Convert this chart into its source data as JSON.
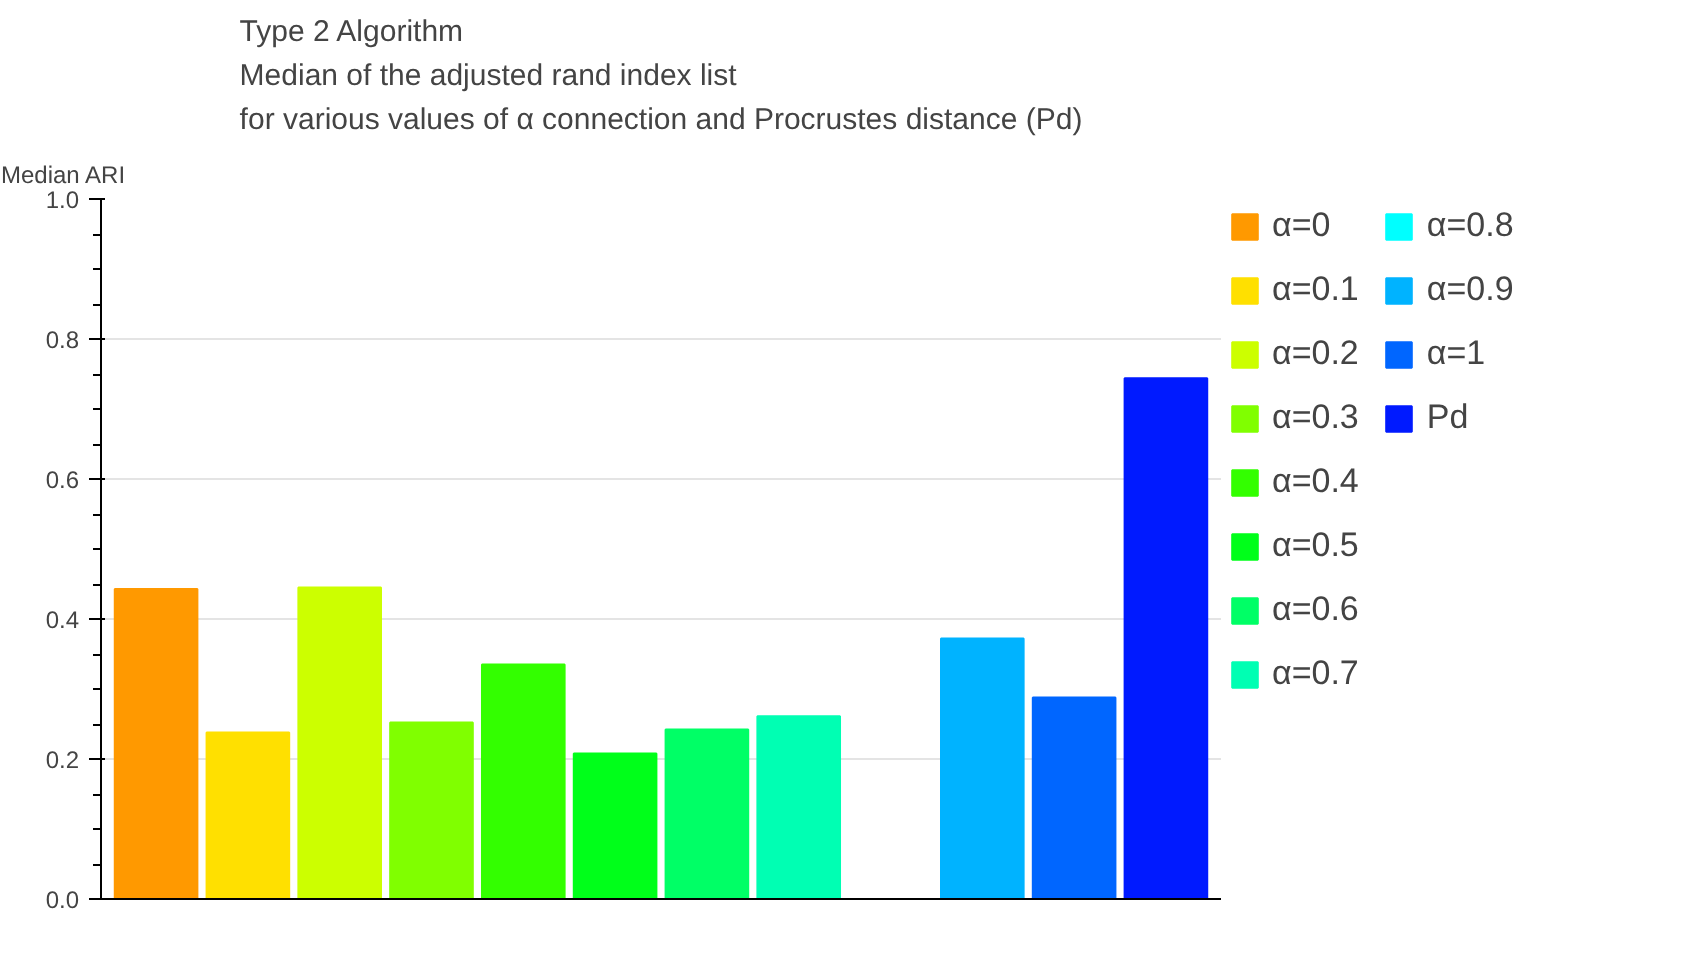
{
  "chart_data": {
    "type": "bar",
    "title": "Type 2 Algorithm\nMedian of the adjusted rand index list\nfor various values of α connection and Procrustes distance (Pd)",
    "ylabel": "Median ARI",
    "categories": [
      null,
      null,
      null,
      null,
      null,
      null,
      null,
      null,
      null,
      null,
      null,
      null
    ],
    "series": [
      {
        "name": "α=0",
        "color": "#ff9900",
        "values": [
          0.443,
          null,
          null,
          null,
          null,
          null,
          null,
          null,
          null,
          null,
          null,
          null
        ]
      },
      {
        "name": "α=0.1",
        "color": "#ffe000",
        "values": [
          null,
          0.238,
          null,
          null,
          null,
          null,
          null,
          null,
          null,
          null,
          null,
          null
        ]
      },
      {
        "name": "α=0.2",
        "color": "#ccff00",
        "values": [
          null,
          null,
          0.445,
          null,
          null,
          null,
          null,
          null,
          null,
          null,
          null,
          null
        ]
      },
      {
        "name": "α=0.3",
        "color": "#80ff00",
        "values": [
          null,
          null,
          null,
          0.252,
          null,
          null,
          null,
          null,
          null,
          null,
          null,
          null
        ]
      },
      {
        "name": "α=0.4",
        "color": "#33ff00",
        "values": [
          null,
          null,
          null,
          null,
          0.335,
          null,
          null,
          null,
          null,
          null,
          null,
          null
        ]
      },
      {
        "name": "α=0.5",
        "color": "#00ff1a",
        "values": [
          null,
          null,
          null,
          null,
          null,
          0.208,
          null,
          null,
          null,
          null,
          null,
          null
        ]
      },
      {
        "name": "α=0.6",
        "color": "#00ff66",
        "values": [
          null,
          null,
          null,
          null,
          null,
          null,
          0.242,
          null,
          null,
          null,
          null,
          null
        ]
      },
      {
        "name": "α=0.7",
        "color": "#00ffb3",
        "values": [
          null,
          null,
          null,
          null,
          null,
          null,
          null,
          0.261,
          null,
          null,
          null,
          null
        ]
      },
      {
        "name": "α=0.8",
        "color": "#00ffff",
        "values": [
          null,
          null,
          null,
          null,
          null,
          null,
          null,
          null,
          0,
          null,
          null,
          null
        ]
      },
      {
        "name": "α=0.9",
        "color": "#00b3ff",
        "values": [
          null,
          null,
          null,
          null,
          null,
          null,
          null,
          null,
          null,
          0.372,
          null,
          null
        ]
      },
      {
        "name": "α=1",
        "color": "#0066ff",
        "values": [
          null,
          null,
          null,
          null,
          null,
          null,
          null,
          null,
          null,
          null,
          0.288,
          null
        ]
      },
      {
        "name": "Pd",
        "color": "#001aff",
        "values": [
          null,
          null,
          null,
          null,
          null,
          null,
          null,
          null,
          null,
          null,
          null,
          0.744
        ]
      }
    ],
    "ylim": [
      0,
      1
    ],
    "yticks": [
      {
        "value": 0,
        "label": "0.0"
      },
      0.2,
      0.4,
      0.6,
      0.8,
      {
        "value": 1,
        "label": "1.0"
      }
    ],
    "grid": "y",
    "legend": "right"
  }
}
